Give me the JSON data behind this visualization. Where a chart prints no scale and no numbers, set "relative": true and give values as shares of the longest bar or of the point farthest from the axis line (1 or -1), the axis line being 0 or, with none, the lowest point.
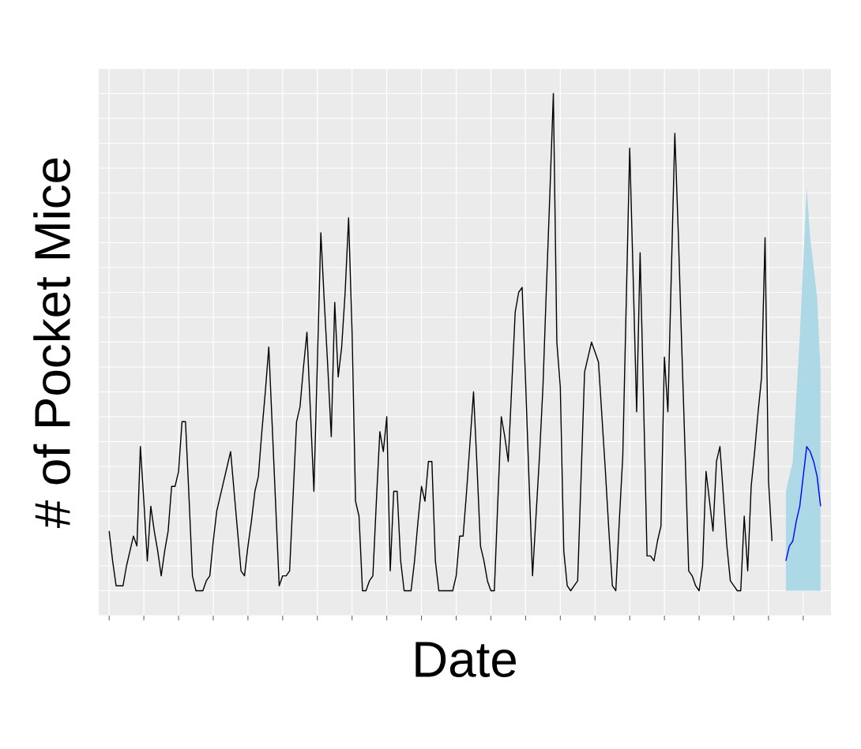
{
  "chart_data": {
    "type": "line",
    "xlabel": "Date",
    "ylabel": "# of Pocket Mice",
    "relative": true,
    "grid": true,
    "categories": [
      null,
      null,
      null,
      null,
      null,
      null,
      null,
      null,
      null,
      null,
      null,
      null,
      null,
      null,
      null,
      null,
      null,
      null,
      null,
      null,
      null,
      null,
      null,
      null,
      null,
      null,
      null,
      null,
      null,
      null,
      null,
      null,
      null,
      null,
      null,
      null,
      null,
      null,
      null,
      null,
      null,
      null,
      null,
      null,
      null,
      null,
      null,
      null,
      null,
      null,
      null,
      null,
      null,
      null,
      null,
      null,
      null,
      null,
      null,
      null,
      null,
      null,
      null,
      null,
      null,
      null,
      null,
      null,
      null,
      null,
      null,
      null,
      null,
      null,
      null,
      null,
      null,
      null,
      null,
      null,
      null,
      null,
      null,
      null,
      null,
      null,
      null,
      null,
      null,
      null,
      null,
      null,
      null,
      null,
      null,
      null,
      null,
      null,
      null,
      null,
      null,
      null,
      null,
      null,
      null,
      null,
      null,
      null,
      null,
      null,
      null,
      null,
      null,
      null,
      null,
      null,
      null,
      null,
      null,
      null,
      null,
      null,
      null,
      null,
      null,
      null,
      null,
      null,
      null,
      null,
      null,
      null,
      null,
      null,
      null,
      null,
      null,
      null,
      null,
      null,
      null,
      null,
      null,
      null,
      null,
      null,
      null,
      null,
      null,
      null,
      null,
      null,
      null,
      null,
      null,
      null,
      null,
      null,
      null,
      null,
      null,
      null,
      null,
      null,
      null,
      null,
      null,
      null,
      null,
      null,
      null,
      null,
      null,
      null,
      null,
      null,
      null,
      null,
      null,
      null,
      null,
      null,
      null,
      null,
      null,
      null,
      null,
      null,
      null,
      null,
      null,
      null,
      null,
      null,
      null,
      null,
      null,
      null,
      null,
      null,
      null,
      null,
      null,
      null,
      null,
      null
    ],
    "series": [
      {
        "color": "#000000",
        "values": [
          0.12,
          0.06,
          0.01,
          0.01,
          0.01,
          0.05,
          0.08,
          0.11,
          0.09,
          0.29,
          0.18,
          0.06,
          0.17,
          0.12,
          0.08,
          0.03,
          0.08,
          0.12,
          0.21,
          0.21,
          0.24,
          0.34,
          0.34,
          0.19,
          0.03,
          0,
          0,
          0,
          0.02,
          0.03,
          0.1,
          0.16,
          0.19,
          0.22,
          0.25,
          0.28,
          0.2,
          0.12,
          0.04,
          0.03,
          0.09,
          0.14,
          0.2,
          0.23,
          0.32,
          0.4,
          0.49,
          0.33,
          0.17,
          0.01,
          0.03,
          0.03,
          0.04,
          0.19,
          0.34,
          0.37,
          0.45,
          0.52,
          0.36,
          0.2,
          0.46,
          0.72,
          0.58,
          0.45,
          0.31,
          0.58,
          0.43,
          0.49,
          0.6,
          0.75,
          0.52,
          0.18,
          0.15,
          0,
          0,
          0.02,
          0.03,
          0.18,
          0.32,
          0.28,
          0.35,
          0.04,
          0.2,
          0.2,
          0.06,
          0,
          0,
          0,
          0.06,
          0.14,
          0.21,
          0.18,
          0.26,
          0.26,
          0.06,
          0,
          0,
          0,
          0,
          0,
          0.03,
          0.11,
          0.11,
          0.2,
          0.3,
          0.4,
          0.25,
          0.09,
          0.06,
          0.02,
          0,
          0,
          0.18,
          0.35,
          0.31,
          0.26,
          0.41,
          0.56,
          0.6,
          0.61,
          0.42,
          0.22,
          0.03,
          0.15,
          0.27,
          0.41,
          0.61,
          0.8,
          1,
          0.5,
          0.41,
          0.08,
          0.01,
          0,
          0.01,
          0.02,
          0.23,
          0.44,
          0.47,
          0.5,
          0.48,
          0.46,
          0.35,
          0.24,
          0.12,
          0.01,
          0,
          0.14,
          0.27,
          0.58,
          0.89,
          0.63,
          0.36,
          0.68,
          0.38,
          0.07,
          0.07,
          0.06,
          0.1,
          0.13,
          0.47,
          0.36,
          0.64,
          0.92,
          0.72,
          0.49,
          0.27,
          0.04,
          0.03,
          0.01,
          0,
          0.05,
          0.24,
          0.18,
          0.12,
          0.26,
          0.29,
          0.19,
          0.09,
          0.02,
          0.01,
          0,
          0,
          0.15,
          0.04,
          0.21,
          0.28,
          0.36,
          0.43,
          0.71,
          0.22,
          0.1,
          null,
          null,
          null,
          null,
          null,
          null,
          null,
          null,
          null,
          null,
          null,
          null,
          null,
          null
        ]
      },
      {
        "color": "#0000ff",
        "values": [
          null,
          null,
          null,
          null,
          null,
          null,
          null,
          null,
          null,
          null,
          null,
          null,
          null,
          null,
          null,
          null,
          null,
          null,
          null,
          null,
          null,
          null,
          null,
          null,
          null,
          null,
          null,
          null,
          null,
          null,
          null,
          null,
          null,
          null,
          null,
          null,
          null,
          null,
          null,
          null,
          null,
          null,
          null,
          null,
          null,
          null,
          null,
          null,
          null,
          null,
          null,
          null,
          null,
          null,
          null,
          null,
          null,
          null,
          null,
          null,
          null,
          null,
          null,
          null,
          null,
          null,
          null,
          null,
          null,
          null,
          null,
          null,
          null,
          null,
          null,
          null,
          null,
          null,
          null,
          null,
          null,
          null,
          null,
          null,
          null,
          null,
          null,
          null,
          null,
          null,
          null,
          null,
          null,
          null,
          null,
          null,
          null,
          null,
          null,
          null,
          null,
          null,
          null,
          null,
          null,
          null,
          null,
          null,
          null,
          null,
          null,
          null,
          null,
          null,
          null,
          null,
          null,
          null,
          null,
          null,
          null,
          null,
          null,
          null,
          null,
          null,
          null,
          null,
          null,
          null,
          null,
          null,
          null,
          null,
          null,
          null,
          null,
          null,
          null,
          null,
          null,
          null,
          null,
          null,
          null,
          null,
          null,
          null,
          null,
          null,
          null,
          null,
          null,
          null,
          null,
          null,
          null,
          null,
          null,
          null,
          null,
          null,
          null,
          null,
          null,
          null,
          null,
          null,
          null,
          null,
          null,
          null,
          null,
          null,
          null,
          null,
          null,
          null,
          null,
          null,
          null,
          null,
          null,
          null,
          null,
          null,
          null,
          null,
          null,
          null,
          null,
          null,
          null,
          null,
          null,
          0.06,
          0.09,
          0.1,
          0.14,
          0.17,
          0.23,
          0.29,
          0.28,
          0.26,
          0.23,
          0.17
        ],
        "lower": [
          null,
          null,
          null,
          null,
          null,
          null,
          null,
          null,
          null,
          null,
          null,
          null,
          null,
          null,
          null,
          null,
          null,
          null,
          null,
          null,
          null,
          null,
          null,
          null,
          null,
          null,
          null,
          null,
          null,
          null,
          null,
          null,
          null,
          null,
          null,
          null,
          null,
          null,
          null,
          null,
          null,
          null,
          null,
          null,
          null,
          null,
          null,
          null,
          null,
          null,
          null,
          null,
          null,
          null,
          null,
          null,
          null,
          null,
          null,
          null,
          null,
          null,
          null,
          null,
          null,
          null,
          null,
          null,
          null,
          null,
          null,
          null,
          null,
          null,
          null,
          null,
          null,
          null,
          null,
          null,
          null,
          null,
          null,
          null,
          null,
          null,
          null,
          null,
          null,
          null,
          null,
          null,
          null,
          null,
          null,
          null,
          null,
          null,
          null,
          null,
          null,
          null,
          null,
          null,
          null,
          null,
          null,
          null,
          null,
          null,
          null,
          null,
          null,
          null,
          null,
          null,
          null,
          null,
          null,
          null,
          null,
          null,
          null,
          null,
          null,
          null,
          null,
          null,
          null,
          null,
          null,
          null,
          null,
          null,
          null,
          null,
          null,
          null,
          null,
          null,
          null,
          null,
          null,
          null,
          null,
          null,
          null,
          null,
          null,
          null,
          null,
          null,
          null,
          null,
          null,
          null,
          null,
          null,
          null,
          null,
          null,
          null,
          null,
          null,
          null,
          null,
          null,
          null,
          null,
          null,
          null,
          null,
          null,
          null,
          null,
          null,
          null,
          null,
          null,
          null,
          null,
          null,
          null,
          null,
          null,
          null,
          null,
          null,
          null,
          null,
          null,
          null,
          null,
          null,
          null,
          0,
          0,
          0,
          0,
          0,
          0,
          0,
          0,
          0,
          0,
          0
        ],
        "upper": [
          null,
          null,
          null,
          null,
          null,
          null,
          null,
          null,
          null,
          null,
          null,
          null,
          null,
          null,
          null,
          null,
          null,
          null,
          null,
          null,
          null,
          null,
          null,
          null,
          null,
          null,
          null,
          null,
          null,
          null,
          null,
          null,
          null,
          null,
          null,
          null,
          null,
          null,
          null,
          null,
          null,
          null,
          null,
          null,
          null,
          null,
          null,
          null,
          null,
          null,
          null,
          null,
          null,
          null,
          null,
          null,
          null,
          null,
          null,
          null,
          null,
          null,
          null,
          null,
          null,
          null,
          null,
          null,
          null,
          null,
          null,
          null,
          null,
          null,
          null,
          null,
          null,
          null,
          null,
          null,
          null,
          null,
          null,
          null,
          null,
          null,
          null,
          null,
          null,
          null,
          null,
          null,
          null,
          null,
          null,
          null,
          null,
          null,
          null,
          null,
          null,
          null,
          null,
          null,
          null,
          null,
          null,
          null,
          null,
          null,
          null,
          null,
          null,
          null,
          null,
          null,
          null,
          null,
          null,
          null,
          null,
          null,
          null,
          null,
          null,
          null,
          null,
          null,
          null,
          null,
          null,
          null,
          null,
          null,
          null,
          null,
          null,
          null,
          null,
          null,
          null,
          null,
          null,
          null,
          null,
          null,
          null,
          null,
          null,
          null,
          null,
          null,
          null,
          null,
          null,
          null,
          null,
          null,
          null,
          null,
          null,
          null,
          null,
          null,
          null,
          null,
          null,
          null,
          null,
          null,
          null,
          null,
          null,
          null,
          null,
          null,
          null,
          null,
          null,
          null,
          null,
          null,
          null,
          null,
          null,
          null,
          null,
          null,
          null,
          null,
          null,
          null,
          null,
          null,
          null,
          0.2,
          0.23,
          0.26,
          0.39,
          0.51,
          0.66,
          0.81,
          0.71,
          0.65,
          0.59,
          0.44
        ]
      }
    ]
  }
}
